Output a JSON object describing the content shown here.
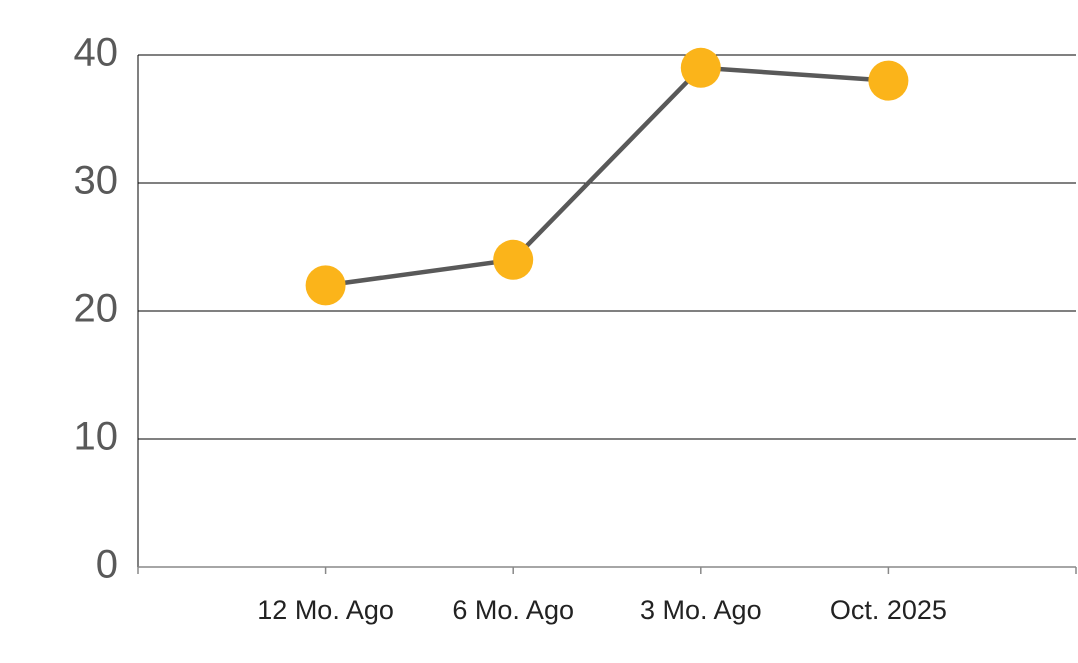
{
  "chart_data": {
    "type": "line",
    "categories": [
      "12 Mo. Ago",
      "6 Mo. Ago",
      "3 Mo. Ago",
      "Oct. 2025"
    ],
    "values": [
      22,
      24,
      39,
      38
    ],
    "line_color": "#595959",
    "marker_color": "#FBB41A",
    "ylim": [
      0,
      40
    ],
    "yticks": [
      0,
      10,
      20,
      30,
      40
    ],
    "grid": true
  }
}
